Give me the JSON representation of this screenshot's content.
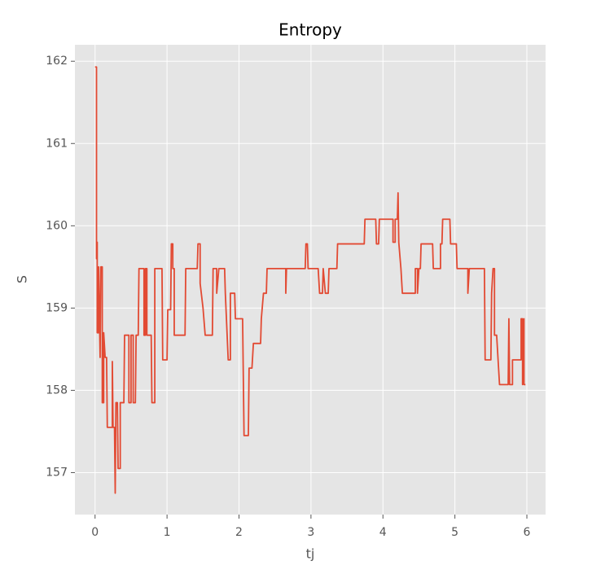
{
  "chart_data": {
    "type": "line",
    "title": "Entropy",
    "x_label": "tj",
    "y_label": "S",
    "xlim": [
      -0.28,
      6.26
    ],
    "ylim": [
      156.49,
      162.2
    ],
    "xticks": [
      0,
      1,
      2,
      3,
      4,
      5,
      6
    ],
    "yticks": [
      157,
      158,
      159,
      160,
      161,
      162
    ],
    "grid": true,
    "background": "#e5e5e5",
    "grid_color": "#ffffff",
    "x": [
      0,
      0.02,
      0.02,
      0.03,
      0.03,
      0.05,
      0.05,
      0.07,
      0.08,
      0.1,
      0.1,
      0.12,
      0.12,
      0.14,
      0.16,
      0.17,
      0.24,
      0.24,
      0.25,
      0.27,
      0.28,
      0.29,
      0.31,
      0.32,
      0.35,
      0.35,
      0.4,
      0.41,
      0.47,
      0.47,
      0.5,
      0.5,
      0.53,
      0.53,
      0.56,
      0.57,
      0.6,
      0.61,
      0.68,
      0.68,
      0.7,
      0.7,
      0.72,
      0.72,
      0.78,
      0.79,
      0.83,
      0.83,
      0.93,
      0.94,
      1.0,
      1.01,
      1.05,
      1.06,
      1.08,
      1.08,
      1.1,
      1.1,
      1.25,
      1.26,
      1.42,
      1.43,
      1.46,
      1.46,
      1.5,
      1.53,
      1.63,
      1.64,
      1.69,
      1.69,
      1.72,
      1.8,
      1.81,
      1.85,
      1.88,
      1.88,
      1.94,
      1.95,
      2.05,
      2.07,
      2.13,
      2.14,
      2.18,
      2.2,
      2.3,
      2.31,
      2.34,
      2.38,
      2.39,
      2.65,
      2.65,
      2.66,
      2.92,
      2.93,
      2.95,
      2.96,
      3.1,
      3.12,
      3.16,
      3.17,
      3.2,
      3.24,
      3.25,
      3.36,
      3.37,
      3.74,
      3.75,
      3.9,
      3.91,
      3.94,
      3.95,
      4.14,
      4.14,
      4.17,
      4.17,
      4.2,
      4.21,
      4.22,
      4.25,
      4.27,
      4.45,
      4.45,
      4.48,
      4.48,
      4.5,
      4.52,
      4.53,
      4.69,
      4.7,
      4.8,
      4.8,
      4.82,
      4.83,
      4.93,
      4.94,
      5.02,
      5.03,
      5.18,
      5.18,
      5.2,
      5.41,
      5.42,
      5.5,
      5.51,
      5.53,
      5.55,
      5.55,
      5.58,
      5.6,
      5.62,
      5.74,
      5.75,
      5.76,
      5.8,
      5.8,
      5.92,
      5.92,
      5.94,
      5.94,
      5.96,
      5.96,
      5.98
    ],
    "series": [
      {
        "color": "#e24a33",
        "values": [
          161.93,
          161.93,
          159.6,
          159.8,
          158.7,
          158.7,
          159.5,
          158.4,
          159.5,
          159.5,
          157.85,
          157.85,
          158.7,
          158.4,
          158.4,
          157.55,
          157.55,
          158.35,
          157.55,
          157.55,
          156.75,
          157.85,
          157.85,
          157.05,
          157.05,
          157.85,
          157.85,
          158.67,
          158.67,
          157.85,
          157.85,
          158.67,
          158.67,
          157.85,
          157.85,
          158.67,
          158.67,
          159.48,
          159.48,
          158.67,
          158.67,
          159.48,
          159.48,
          158.67,
          158.67,
          157.85,
          157.85,
          159.48,
          159.48,
          158.37,
          158.37,
          158.98,
          158.98,
          159.78,
          159.78,
          159.48,
          159.48,
          158.67,
          158.67,
          159.48,
          159.48,
          159.78,
          159.78,
          159.3,
          159.0,
          158.67,
          158.67,
          159.48,
          159.48,
          159.18,
          159.48,
          159.48,
          159.18,
          158.37,
          158.37,
          159.18,
          159.18,
          158.87,
          158.87,
          157.45,
          157.45,
          158.27,
          158.27,
          158.57,
          158.57,
          158.87,
          159.18,
          159.18,
          159.48,
          159.48,
          159.18,
          159.48,
          159.48,
          159.78,
          159.78,
          159.48,
          159.48,
          159.18,
          159.18,
          159.48,
          159.18,
          159.18,
          159.48,
          159.48,
          159.78,
          159.78,
          160.08,
          160.08,
          159.78,
          159.78,
          160.08,
          160.08,
          159.8,
          159.8,
          160.08,
          160.08,
          160.4,
          159.8,
          159.48,
          159.18,
          159.18,
          159.48,
          159.48,
          159.18,
          159.48,
          159.48,
          159.78,
          159.78,
          159.48,
          159.48,
          159.78,
          159.78,
          160.08,
          160.08,
          159.78,
          159.78,
          159.48,
          159.48,
          159.18,
          159.48,
          159.48,
          158.37,
          158.37,
          159.18,
          159.48,
          159.48,
          158.67,
          158.67,
          158.37,
          158.07,
          158.07,
          158.87,
          158.07,
          158.07,
          158.37,
          158.37,
          158.87,
          158.87,
          158.07,
          158.87,
          158.07,
          158.07
        ]
      }
    ]
  }
}
